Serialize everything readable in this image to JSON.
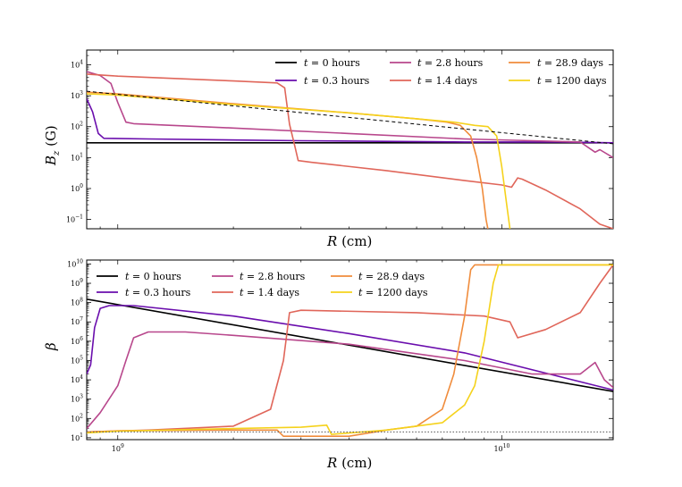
{
  "chart_data": [
    {
      "type": "line",
      "panel": "top",
      "ylabel": "B_z (G)",
      "ylabel_main": "B",
      "ylabel_sub": "z",
      "ylabel_unit": "(G)",
      "xlabel": "R (cm)",
      "xscale": "log",
      "yscale": "log",
      "xlim": [
        830000000.0,
        19500000000.0
      ],
      "ylim": [
        0.05,
        30000
      ],
      "yticks": [
        {
          "value": 0.1,
          "base": "10",
          "exp": "−1"
        },
        {
          "value": 1,
          "base": "10",
          "exp": "0"
        },
        {
          "value": 10,
          "base": "10",
          "exp": "1"
        },
        {
          "value": 100,
          "base": "10",
          "exp": "2"
        },
        {
          "value": 1000,
          "base": "10",
          "exp": "3"
        },
        {
          "value": 10000,
          "base": "10",
          "exp": "4"
        }
      ],
      "legend_position": "top-right",
      "series": [
        {
          "name": "t = 0 hours",
          "color": "#000000",
          "dash": "",
          "points": [
            [
              830000000.0,
              30
            ],
            [
              19500000000.0,
              30
            ]
          ]
        },
        {
          "name": "t = 0.3 hours",
          "color": "#6a0dad",
          "dash": "",
          "points": [
            [
              830000000.0,
              800
            ],
            [
              860000000.0,
              300
            ],
            [
              890000000.0,
              60
            ],
            [
              920000000.0,
              42
            ],
            [
              1200000000.0,
              40
            ],
            [
              3000000000.0,
              35
            ],
            [
              8000000000.0,
              32
            ],
            [
              14000000000.0,
              32
            ],
            [
              19500000000.0,
              30
            ]
          ]
        },
        {
          "name": "t = 2.8 hours",
          "color": "#b8478c",
          "dash": "",
          "points": [
            [
              830000000.0,
              6000
            ],
            [
              900000000.0,
              4500
            ],
            [
              960000000.0,
              2500
            ],
            [
              1000000000.0,
              600
            ],
            [
              1050000000.0,
              140
            ],
            [
              1100000000.0,
              125
            ],
            [
              2000000000.0,
              90
            ],
            [
              4000000000.0,
              60
            ],
            [
              8000000000.0,
              40
            ],
            [
              12000000000.0,
              35
            ],
            [
              16000000000.0,
              32
            ],
            [
              17500000000.0,
              15
            ],
            [
              18000000000.0,
              18
            ],
            [
              19500000000.0,
              10
            ]
          ]
        },
        {
          "name": "t = 1.4 days",
          "color": "#e0665a",
          "dash": "",
          "points": [
            [
              830000000.0,
              5000
            ],
            [
              1000000000.0,
              4300
            ],
            [
              2000000000.0,
              3000
            ],
            [
              2600000000.0,
              2600
            ],
            [
              2720000000.0,
              1800
            ],
            [
              2800000000.0,
              120
            ],
            [
              2900000000.0,
              20
            ],
            [
              2950000000.0,
              8
            ],
            [
              3200000000.0,
              7
            ],
            [
              5000000000.0,
              3.8
            ],
            [
              8000000000.0,
              1.8
            ],
            [
              10000000000.0,
              1.3
            ],
            [
              10600000000.0,
              1.1
            ],
            [
              11000000000.0,
              2.2
            ],
            [
              11300000000.0,
              2.0
            ],
            [
              13000000000.0,
              0.9
            ],
            [
              16000000000.0,
              0.22
            ],
            [
              18000000000.0,
              0.07
            ],
            [
              19500000000.0,
              0.05
            ]
          ]
        },
        {
          "name": "t = 28.9 days",
          "color": "#f08c3c",
          "dash": "",
          "points": [
            [
              830000000.0,
              1300
            ],
            [
              1000000000.0,
              1150
            ],
            [
              2000000000.0,
              550
            ],
            [
              4000000000.0,
              280
            ],
            [
              6000000000.0,
              180
            ],
            [
              7200000000.0,
              140
            ],
            [
              7800000000.0,
              110
            ],
            [
              8300000000.0,
              50
            ],
            [
              8600000000.0,
              10
            ],
            [
              8900000000.0,
              1
            ],
            [
              9100000000.0,
              0.1
            ],
            [
              9200000000.0,
              0.05
            ]
          ]
        },
        {
          "name": "t = 1200 days",
          "color": "#f5d21c",
          "dash": "",
          "points": [
            [
              830000000.0,
              1150
            ],
            [
              1000000000.0,
              1050
            ],
            [
              2000000000.0,
              520
            ],
            [
              4000000000.0,
              280
            ],
            [
              6000000000.0,
              180
            ],
            [
              7500000000.0,
              140
            ],
            [
              8500000000.0,
              110
            ],
            [
              9200000000.0,
              100
            ],
            [
              9700000000.0,
              50
            ],
            [
              10000000000.0,
              5
            ],
            [
              10300000000.0,
              0.3
            ],
            [
              10500000000.0,
              0.05
            ]
          ]
        },
        {
          "name": "initial profile",
          "color": "#000000",
          "dash": "4,3",
          "legend": false,
          "points": [
            [
              830000000.0,
              1400
            ],
            [
              19500000000.0,
              28
            ]
          ]
        }
      ]
    },
    {
      "type": "line",
      "panel": "bottom",
      "ylabel": "β",
      "xlabel": "R (cm)",
      "xscale": "log",
      "yscale": "log",
      "xlim": [
        830000000.0,
        19500000000.0
      ],
      "ylim": [
        8,
        16000000000.0
      ],
      "xticks": [
        {
          "value": 1000000000.0,
          "base": "10",
          "exp": "9"
        },
        {
          "value": 10000000000.0,
          "base": "10",
          "exp": "10"
        }
      ],
      "yticks": [
        {
          "value": 10,
          "base": "10",
          "exp": "1"
        },
        {
          "value": 100,
          "base": "10",
          "exp": "2"
        },
        {
          "value": 1000,
          "base": "10",
          "exp": "3"
        },
        {
          "value": 10000,
          "base": "10",
          "exp": "4"
        },
        {
          "value": 100000,
          "base": "10",
          "exp": "5"
        },
        {
          "value": 1000000,
          "base": "10",
          "exp": "6"
        },
        {
          "value": 10000000,
          "base": "10",
          "exp": "7"
        },
        {
          "value": 100000000,
          "base": "10",
          "exp": "8"
        },
        {
          "value": 1000000000,
          "base": "10",
          "exp": "9"
        },
        {
          "value": 10000000000,
          "base": "10",
          "exp": "10"
        }
      ],
      "legend_position": "top-left",
      "series": [
        {
          "name": "t = 0 hours",
          "color": "#000000",
          "dash": "",
          "points": [
            [
              830000000.0,
              150000000.0
            ],
            [
              19500000000.0,
              2500
            ]
          ]
        },
        {
          "name": "t = 0.3 hours",
          "color": "#6a0dad",
          "dash": "",
          "points": [
            [
              830000000.0,
              20000.0
            ],
            [
              850000000.0,
              60000.0
            ],
            [
              870000000.0,
              5000000.0
            ],
            [
              900000000.0,
              50000000.0
            ],
            [
              950000000.0,
              70000000.0
            ],
            [
              1100000000.0,
              70000000.0
            ],
            [
              2000000000.0,
              20000000.0
            ],
            [
              4000000000.0,
              2500000.0
            ],
            [
              8000000000.0,
              250000.0
            ],
            [
              19500000000.0,
              3000
            ]
          ]
        },
        {
          "name": "t = 2.8 hours",
          "color": "#b8478c",
          "dash": "",
          "points": [
            [
              830000000.0,
              30
            ],
            [
              900000000.0,
              200
            ],
            [
              1000000000.0,
              5000
            ],
            [
              1050000000.0,
              100000.0
            ],
            [
              1100000000.0,
              1500000.0
            ],
            [
              1200000000.0,
              3000000.0
            ],
            [
              1500000000.0,
              3000000.0
            ],
            [
              2000000000.0,
              2000000.0
            ],
            [
              4000000000.0,
              700000.0
            ],
            [
              8000000000.0,
              100000.0
            ],
            [
              12000000000.0,
              20000.0
            ],
            [
              16000000000.0,
              20000.0
            ],
            [
              17500000000.0,
              80000.0
            ],
            [
              18500000000.0,
              10000.0
            ],
            [
              19500000000.0,
              4000
            ]
          ]
        },
        {
          "name": "t = 1.4 days",
          "color": "#e0665a",
          "dash": "",
          "points": [
            [
              830000000.0,
              20
            ],
            [
              1200000000.0,
              25
            ],
            [
              2000000000.0,
              40
            ],
            [
              2500000000.0,
              300
            ],
            [
              2700000000.0,
              100000.0
            ],
            [
              2800000000.0,
              30000000.0
            ],
            [
              3000000000.0,
              40000000.0
            ],
            [
              6000000000.0,
              30000000.0
            ],
            [
              9000000000.0,
              20000000.0
            ],
            [
              10500000000.0,
              10000000.0
            ],
            [
              11000000000.0,
              1500000.0
            ],
            [
              13000000000.0,
              4000000.0
            ],
            [
              16000000000.0,
              30000000.0
            ],
            [
              18000000000.0,
              1000000000.0
            ],
            [
              19500000000.0,
              9000000000.0
            ]
          ]
        },
        {
          "name": "t = 28.9 days",
          "color": "#f08c3c",
          "dash": "",
          "points": [
            [
              830000000.0,
              20
            ],
            [
              1000000000.0,
              23
            ],
            [
              2000000000.0,
              25
            ],
            [
              2600000000.0,
              25
            ],
            [
              2700000000.0,
              12
            ],
            [
              4000000000.0,
              12
            ],
            [
              5000000000.0,
              25
            ],
            [
              6000000000.0,
              40
            ],
            [
              7000000000.0,
              300
            ],
            [
              7500000000.0,
              20000.0
            ],
            [
              8000000000.0,
              20000000.0
            ],
            [
              8300000000.0,
              5000000000.0
            ],
            [
              8500000000.0,
              9000000000.0
            ],
            [
              19500000000.0,
              9000000000.0
            ]
          ]
        },
        {
          "name": "t = 1200 days",
          "color": "#f5d21c",
          "dash": "",
          "points": [
            [
              830000000.0,
              18
            ],
            [
              1000000000.0,
              22
            ],
            [
              2000000000.0,
              30
            ],
            [
              3000000000.0,
              35
            ],
            [
              3500000000.0,
              45
            ],
            [
              3600000000.0,
              15
            ],
            [
              5000000000.0,
              25
            ],
            [
              7000000000.0,
              60
            ],
            [
              8000000000.0,
              500
            ],
            [
              8500000000.0,
              5000
            ],
            [
              9000000000.0,
              1000000.0
            ],
            [
              9500000000.0,
              1000000000.0
            ],
            [
              9800000000.0,
              9000000000.0
            ],
            [
              19500000000.0,
              9000000000.0
            ]
          ]
        },
        {
          "name": "reference level",
          "color": "#555555",
          "dash": "1.5,2",
          "legend": false,
          "points": [
            [
              830000000.0,
              20
            ],
            [
              19500000000.0,
              20
            ]
          ]
        }
      ]
    }
  ],
  "legend_labels": {
    "t0": {
      "var": "t",
      "eq": " = 0 hours"
    },
    "t1": {
      "var": "t",
      "eq": " = 0.3 hours"
    },
    "t2": {
      "var": "t",
      "eq": " = 2.8 hours"
    },
    "t3": {
      "var": "t",
      "eq": " = 1.4 days"
    },
    "t4": {
      "var": "t",
      "eq": " = 28.9 days"
    },
    "t5": {
      "var": "t",
      "eq": " = 1200 days"
    }
  },
  "xlabel_var": "R",
  "xlabel_unit": "(cm)",
  "beta_symbol": "β"
}
